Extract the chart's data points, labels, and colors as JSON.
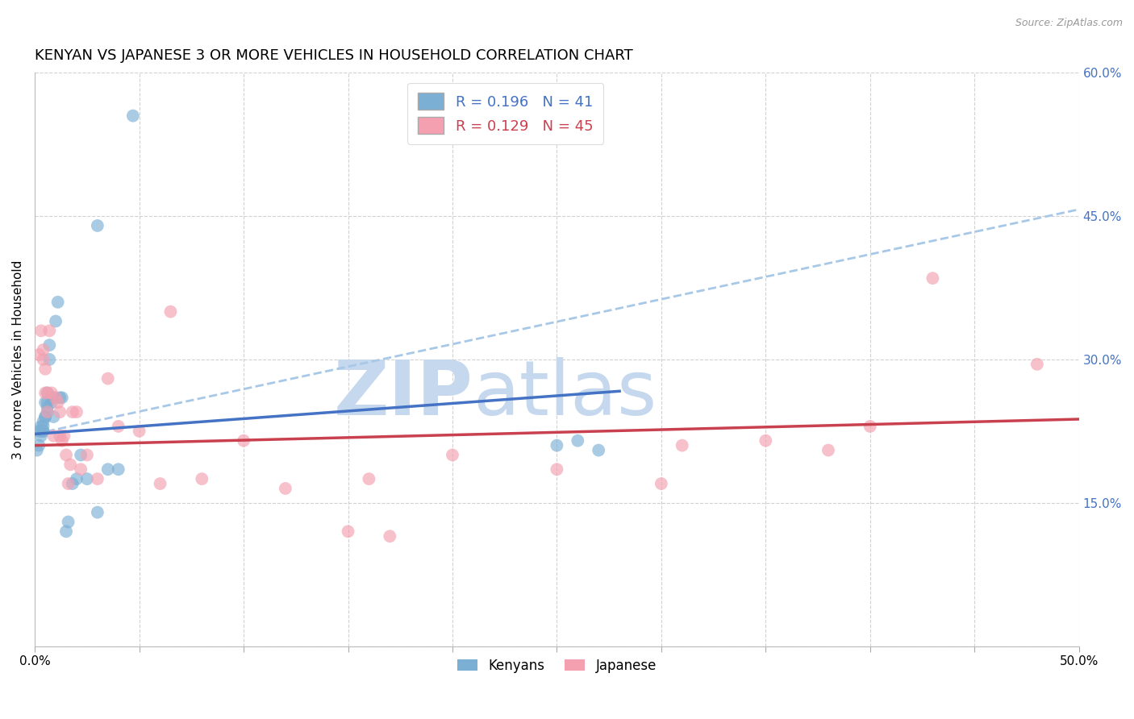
{
  "title": "KENYAN VS JAPANESE 3 OR MORE VEHICLES IN HOUSEHOLD CORRELATION CHART",
  "source": "Source: ZipAtlas.com",
  "ylabel": "3 or more Vehicles in Household",
  "xlim": [
    0.0,
    0.5
  ],
  "ylim": [
    0.0,
    0.6
  ],
  "xticks": [
    0.0,
    0.05,
    0.1,
    0.15,
    0.2,
    0.25,
    0.3,
    0.35,
    0.4,
    0.45,
    0.5
  ],
  "yticks": [
    0.0,
    0.15,
    0.3,
    0.45,
    0.6
  ],
  "kenyan_R": 0.196,
  "kenyan_N": 41,
  "japanese_R": 0.129,
  "japanese_N": 45,
  "kenyan_color": "#7BAFD4",
  "japanese_color": "#F4A0B0",
  "kenyan_line_color": "#4472C4",
  "japanese_line_color": "#C9414E",
  "dashed_line_color": "#A8C8E8",
  "background_color": "#ffffff",
  "grid_color": "#cccccc",
  "watermark_zip": "ZIP",
  "watermark_atlas": "atlas",
  "watermark_zip_color": "#C5D8EE",
  "watermark_atlas_color": "#C5D8EE",
  "title_fontsize": 13,
  "label_fontsize": 11,
  "tick_fontsize": 11,
  "right_tick_color": "#4472C4",
  "kenyan_line_intercept": 0.222,
  "kenyan_line_slope": 0.16,
  "japanese_line_intercept": 0.21,
  "japanese_line_slope": 0.055,
  "dashed_line_intercept": 0.222,
  "dashed_line_slope": 0.47,
  "kenyan_x": [
    0.001,
    0.002,
    0.002,
    0.003,
    0.003,
    0.003,
    0.004,
    0.004,
    0.004,
    0.004,
    0.005,
    0.005,
    0.005,
    0.006,
    0.006,
    0.006,
    0.006,
    0.007,
    0.007,
    0.008,
    0.008,
    0.009,
    0.009,
    0.01,
    0.011,
    0.012,
    0.013,
    0.015,
    0.016,
    0.018,
    0.02,
    0.022,
    0.025,
    0.03,
    0.26,
    0.27,
    0.03,
    0.035,
    0.04,
    0.047,
    0.25
  ],
  "kenyan_y": [
    0.205,
    0.21,
    0.225,
    0.22,
    0.23,
    0.225,
    0.225,
    0.235,
    0.23,
    0.225,
    0.24,
    0.255,
    0.24,
    0.245,
    0.25,
    0.255,
    0.265,
    0.315,
    0.3,
    0.26,
    0.255,
    0.26,
    0.24,
    0.34,
    0.36,
    0.26,
    0.26,
    0.12,
    0.13,
    0.17,
    0.175,
    0.2,
    0.175,
    0.44,
    0.215,
    0.205,
    0.14,
    0.185,
    0.185,
    0.555,
    0.21
  ],
  "japanese_x": [
    0.002,
    0.003,
    0.004,
    0.004,
    0.005,
    0.005,
    0.006,
    0.006,
    0.007,
    0.008,
    0.009,
    0.01,
    0.011,
    0.012,
    0.012,
    0.013,
    0.014,
    0.015,
    0.016,
    0.017,
    0.018,
    0.02,
    0.022,
    0.025,
    0.03,
    0.035,
    0.04,
    0.05,
    0.06,
    0.065,
    0.08,
    0.1,
    0.12,
    0.15,
    0.16,
    0.17,
    0.2,
    0.25,
    0.3,
    0.31,
    0.35,
    0.38,
    0.4,
    0.43,
    0.48
  ],
  "japanese_y": [
    0.305,
    0.33,
    0.3,
    0.31,
    0.265,
    0.29,
    0.265,
    0.245,
    0.33,
    0.265,
    0.22,
    0.26,
    0.255,
    0.245,
    0.22,
    0.215,
    0.22,
    0.2,
    0.17,
    0.19,
    0.245,
    0.245,
    0.185,
    0.2,
    0.175,
    0.28,
    0.23,
    0.225,
    0.17,
    0.35,
    0.175,
    0.215,
    0.165,
    0.12,
    0.175,
    0.115,
    0.2,
    0.185,
    0.17,
    0.21,
    0.215,
    0.205,
    0.23,
    0.385,
    0.295
  ]
}
